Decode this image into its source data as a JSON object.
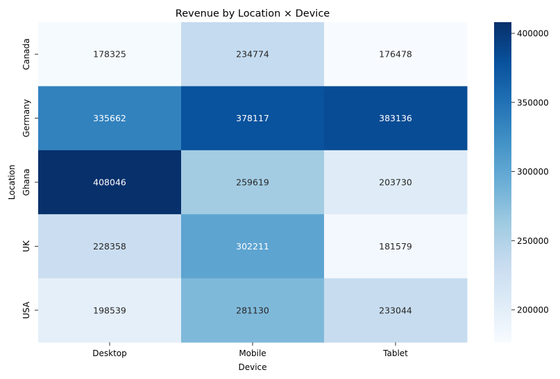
{
  "chart_data": {
    "type": "heatmap",
    "title": "Revenue by Location × Device",
    "xlabel": "Device",
    "ylabel": "Location",
    "x_categories": [
      "Desktop",
      "Mobile",
      "Tablet"
    ],
    "y_categories": [
      "Canada",
      "Germany",
      "Ghana",
      "UK",
      "USA"
    ],
    "values": [
      [
        178325,
        234774,
        176478
      ],
      [
        335662,
        378117,
        383136
      ],
      [
        408046,
        259619,
        203730
      ],
      [
        228358,
        302211,
        181579
      ],
      [
        198539,
        281130,
        233044
      ]
    ],
    "colorbar": {
      "ticks": [
        200000,
        250000,
        300000,
        350000,
        400000
      ],
      "range": [
        176478,
        408046
      ]
    },
    "colormap": "Blues",
    "grid": false
  }
}
